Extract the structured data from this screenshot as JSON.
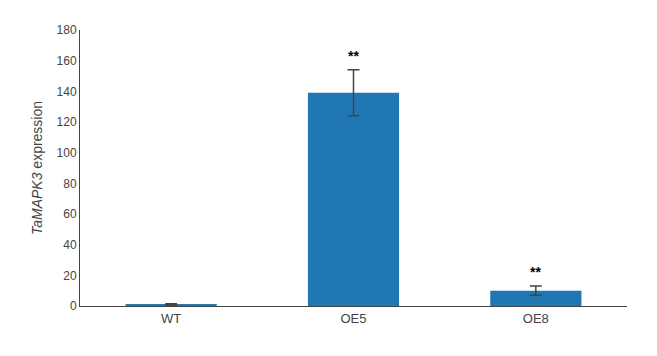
{
  "chart_data": {
    "type": "bar",
    "categories": [
      "WT",
      "OE5",
      "OE8"
    ],
    "values": [
      1.0,
      139.0,
      10.0
    ],
    "errors": [
      0.5,
      15.0,
      3.0
    ],
    "ylabel": "TaMAPK3 expression",
    "ylim": [
      0,
      180
    ],
    "yticks": [
      0,
      20,
      40,
      60,
      80,
      100,
      120,
      140,
      160,
      180
    ],
    "grid": false,
    "annotations": [
      {
        "x": "OE5",
        "text": "**"
      },
      {
        "x": "OE8",
        "text": "**"
      }
    ]
  }
}
